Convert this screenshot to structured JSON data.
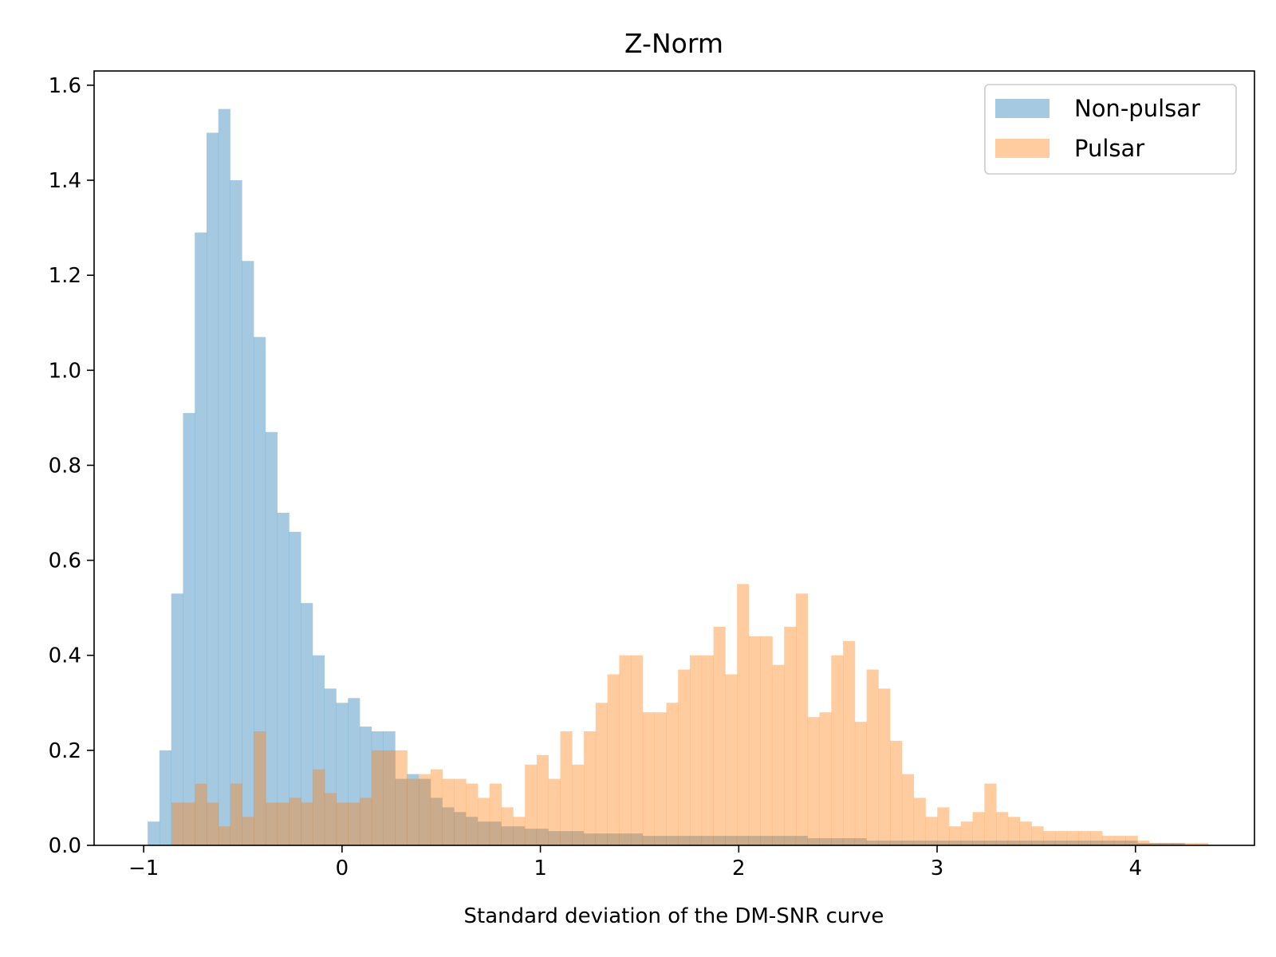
{
  "chart_data": {
    "type": "histogram",
    "title": "Z-Norm",
    "xlabel": "Standard deviation of the DM-SNR curve",
    "ylabel": "",
    "xlim": [
      -1.25,
      4.6
    ],
    "ylim": [
      0.0,
      1.63
    ],
    "xticks": [
      -1,
      0,
      1,
      2,
      3,
      4
    ],
    "xtick_labels": [
      "−1",
      "0",
      "1",
      "2",
      "3",
      "4"
    ],
    "yticks": [
      0.0,
      0.2,
      0.4,
      0.6,
      0.8,
      1.0,
      1.2,
      1.4,
      1.6
    ],
    "ytick_labels": [
      "0.0",
      "0.2",
      "0.4",
      "0.6",
      "0.8",
      "1.0",
      "1.2",
      "1.4",
      "1.6"
    ],
    "grid": false,
    "legend": {
      "position": "upper-right",
      "entries": [
        "Non-pulsar",
        "Pulsar"
      ]
    },
    "series": [
      {
        "name": "Non-pulsar",
        "color": "#1f77b4",
        "alpha": 0.4,
        "bin_start": -0.98,
        "bin_width": 0.0594,
        "values": [
          0.05,
          0.2,
          0.53,
          0.91,
          1.29,
          1.5,
          1.55,
          1.4,
          1.23,
          1.07,
          0.87,
          0.7,
          0.66,
          0.51,
          0.4,
          0.33,
          0.3,
          0.31,
          0.25,
          0.24,
          0.24,
          0.14,
          0.15,
          0.14,
          0.1,
          0.08,
          0.07,
          0.06,
          0.05,
          0.05,
          0.04,
          0.04,
          0.035,
          0.035,
          0.03,
          0.03,
          0.03,
          0.025,
          0.025,
          0.025,
          0.025,
          0.025,
          0.02,
          0.02,
          0.02,
          0.02,
          0.02,
          0.02,
          0.02,
          0.02,
          0.02,
          0.02,
          0.02,
          0.02,
          0.02,
          0.02,
          0.015,
          0.015,
          0.015,
          0.015,
          0.015,
          0.01,
          0.01,
          0.01,
          0.01,
          0.01,
          0.01,
          0.01,
          0.01,
          0.01,
          0.01,
          0.01,
          0.01,
          0.01,
          0.01,
          0.01,
          0.01,
          0.01,
          0.01,
          0.01,
          0.01,
          0.01,
          0.01,
          0.01,
          0.005,
          0.005,
          0.005,
          0.005
        ]
      },
      {
        "name": "Pulsar",
        "color": "#ff7f0e",
        "alpha": 0.4,
        "bin_start": -0.86,
        "bin_width": 0.0594,
        "values": [
          0.09,
          0.09,
          0.13,
          0.09,
          0.04,
          0.13,
          0.06,
          0.24,
          0.09,
          0.09,
          0.1,
          0.09,
          0.16,
          0.11,
          0.09,
          0.09,
          0.1,
          0.2,
          0.2,
          0.2,
          0.14,
          0.15,
          0.16,
          0.14,
          0.14,
          0.13,
          0.1,
          0.13,
          0.08,
          0.06,
          0.17,
          0.19,
          0.14,
          0.24,
          0.17,
          0.24,
          0.3,
          0.36,
          0.4,
          0.4,
          0.28,
          0.28,
          0.3,
          0.37,
          0.4,
          0.4,
          0.46,
          0.36,
          0.55,
          0.44,
          0.44,
          0.38,
          0.46,
          0.53,
          0.27,
          0.28,
          0.4,
          0.43,
          0.26,
          0.37,
          0.33,
          0.22,
          0.15,
          0.1,
          0.06,
          0.08,
          0.04,
          0.05,
          0.07,
          0.13,
          0.07,
          0.06,
          0.05,
          0.04,
          0.03,
          0.03,
          0.03,
          0.03,
          0.03,
          0.02,
          0.02,
          0.02,
          0.01,
          0.005,
          0.005,
          0.005,
          0.005,
          0.005
        ]
      }
    ]
  }
}
